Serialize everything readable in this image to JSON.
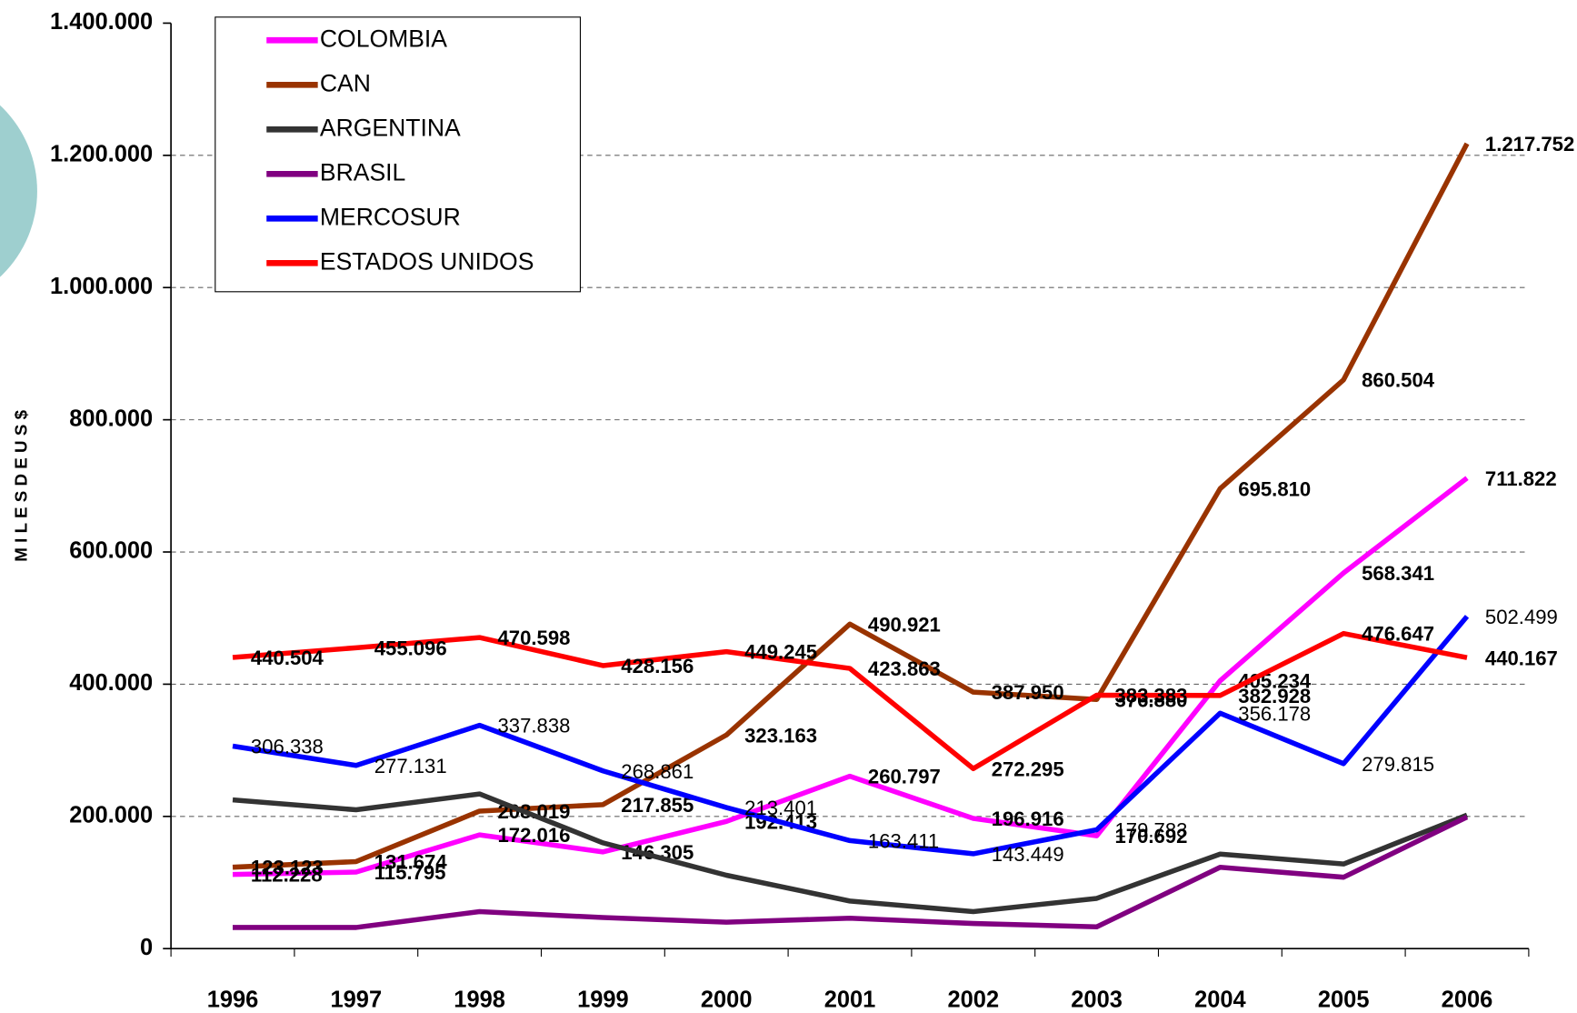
{
  "chart_data": {
    "type": "line",
    "y_label": "M I L E S  D E  U S $",
    "categories": [
      "1996",
      "1997",
      "1998",
      "1999",
      "2000",
      "2001",
      "2002",
      "2003",
      "2004",
      "2005",
      "2006"
    ],
    "ylim": [
      0,
      1400000
    ],
    "yticks": [
      {
        "value": 0,
        "label": "0"
      },
      {
        "value": 200000,
        "label": "200.000"
      },
      {
        "value": 400000,
        "label": "400.000"
      },
      {
        "value": 600000,
        "label": "600.000"
      },
      {
        "value": 800000,
        "label": "800.000"
      },
      {
        "value": 1000000,
        "label": "1.000.000"
      },
      {
        "value": 1200000,
        "label": "1.200.000"
      },
      {
        "value": 1400000,
        "label": "1.400.000"
      }
    ],
    "grid": true,
    "legend": "upper left",
    "series": [
      {
        "name": "COLOMBIA",
        "color": "#ff00ff",
        "values": [
          112228,
          115795,
          172016,
          146305,
          192413,
          260797,
          196916,
          170692,
          405234,
          568341,
          711822
        ],
        "value_labels": [
          "112.228",
          "115.795",
          "172.016",
          "146.305",
          "192.413",
          "260.797",
          "196.916",
          "170.692",
          "405.234",
          "568.341",
          "711.822"
        ],
        "bold": true
      },
      {
        "name": "CAN",
        "color": "#993300",
        "values": [
          123123,
          131674,
          208019,
          217855,
          323163,
          490921,
          387950,
          376880,
          695810,
          860504,
          1217752
        ],
        "value_labels": [
          "123.123",
          "131.674",
          "208.019",
          "217.855",
          "323.163",
          "490.921",
          "387.950",
          "376.880",
          "695.810",
          "860.504",
          "1.217.752"
        ],
        "bold": true
      },
      {
        "name": "ARGENTINA",
        "color": "#333333",
        "values": [
          225000,
          210000,
          234000,
          160000,
          111000,
          72000,
          56000,
          76000,
          143000,
          128000,
          202000
        ]
      },
      {
        "name": "BRASIL",
        "color": "#800080",
        "values": [
          32000,
          32000,
          56000,
          47000,
          40000,
          46000,
          38000,
          33000,
          123000,
          108000,
          199000
        ]
      },
      {
        "name": "MERCOSUR",
        "color": "#0000ff",
        "values": [
          306338,
          277131,
          337838,
          268861,
          213401,
          163411,
          143449,
          179783,
          356178,
          279815,
          502499
        ],
        "value_labels": [
          "306.338",
          "277.131",
          "337.838",
          "268.861",
          "213.401",
          "163.411",
          "143.449",
          "179.783",
          "356.178",
          "279.815",
          "502.499"
        ],
        "bold": false
      },
      {
        "name": "ESTADOS UNIDOS",
        "color": "#ff0000",
        "values": [
          440504,
          455096,
          470598,
          428156,
          449245,
          423863,
          272295,
          383383,
          382928,
          476647,
          440167
        ],
        "value_labels": [
          "440.504",
          "455.096",
          "470.598",
          "428.156",
          "449.245",
          "423.863",
          "272.295",
          "383.383",
          "382.928",
          "476.647",
          "440.167"
        ],
        "bold": true
      }
    ]
  }
}
